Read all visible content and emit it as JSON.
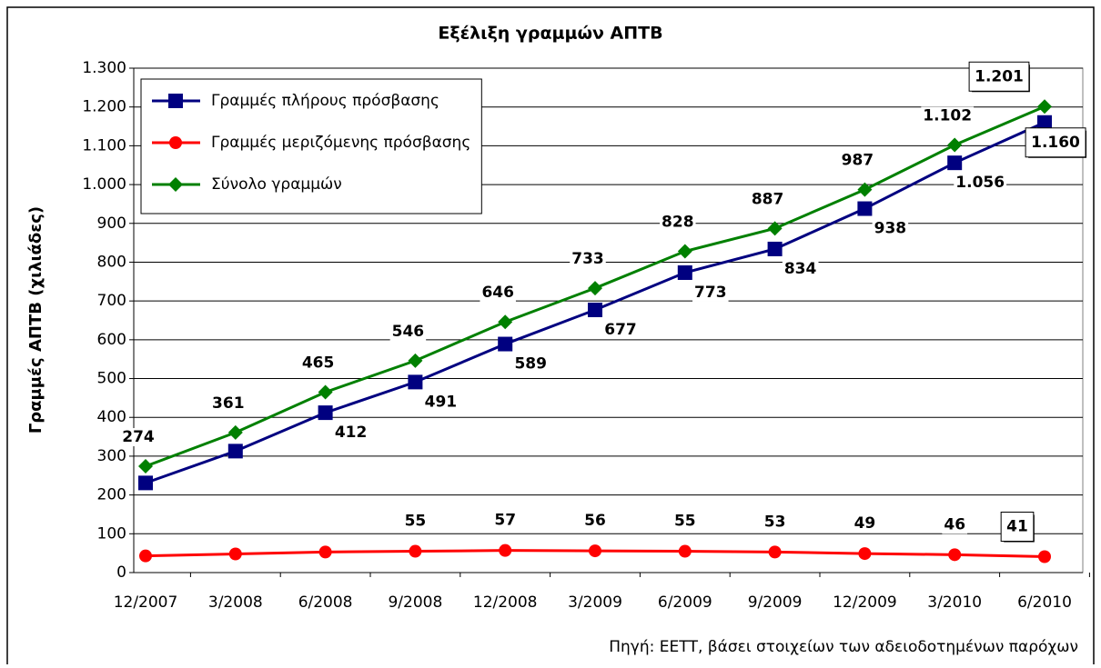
{
  "chart_data": {
    "type": "line",
    "title": "Εξέλιξη γραμμών ΑΠΤΒ",
    "y_label": "Γραμμές ΑΠΤΒ (χιλιάδες)",
    "source": "Πηγή: ΕΕΤΤ, βάσει στοιχείων των αδειοδοτημένων παρόχων",
    "categories": [
      "12/2007",
      "3/2008",
      "6/2008",
      "9/2008",
      "12/2008",
      "3/2009",
      "6/2009",
      "9/2009",
      "12/2009",
      "3/2010",
      "6/2010"
    ],
    "series": [
      {
        "name": "Γραμμές πλήρους πρόσβασης",
        "color": "#000080",
        "marker": "square",
        "values": [
          231,
          313,
          412,
          491,
          589,
          677,
          773,
          834,
          938,
          1056,
          1160
        ],
        "value_labels": [
          null,
          null,
          "412",
          "491",
          "589",
          "677",
          "773",
          "834",
          "938",
          "1.056",
          "1.160"
        ]
      },
      {
        "name": "Γραμμές μεριζόμενης πρόσβασης",
        "color": "#ff0000",
        "marker": "circle",
        "values": [
          43,
          48,
          53,
          55,
          57,
          56,
          55,
          53,
          49,
          46,
          41
        ],
        "value_labels": [
          null,
          null,
          null,
          "55",
          "57",
          "56",
          "55",
          "53",
          "49",
          "46",
          "41"
        ]
      },
      {
        "name": "Σύνολο γραμμών",
        "color": "#008000",
        "marker": "diamond",
        "values": [
          274,
          361,
          465,
          546,
          646,
          733,
          828,
          887,
          987,
          1102,
          1201
        ],
        "value_labels": [
          "274",
          "361",
          "465",
          "546",
          "646",
          "733",
          "828",
          "887",
          "987",
          "1.102",
          "1.201"
        ]
      }
    ],
    "ylim": [
      0,
      1300
    ],
    "yticks": [
      0,
      100,
      200,
      300,
      400,
      500,
      600,
      700,
      800,
      900,
      {
        "value": 1000,
        "label": "1.000"
      },
      {
        "value": 1100,
        "label": "1.100"
      },
      {
        "value": 1200,
        "label": "1.200"
      },
      {
        "value": 1300,
        "label": "1.300"
      }
    ],
    "grid": true,
    "legend": "upper left"
  }
}
